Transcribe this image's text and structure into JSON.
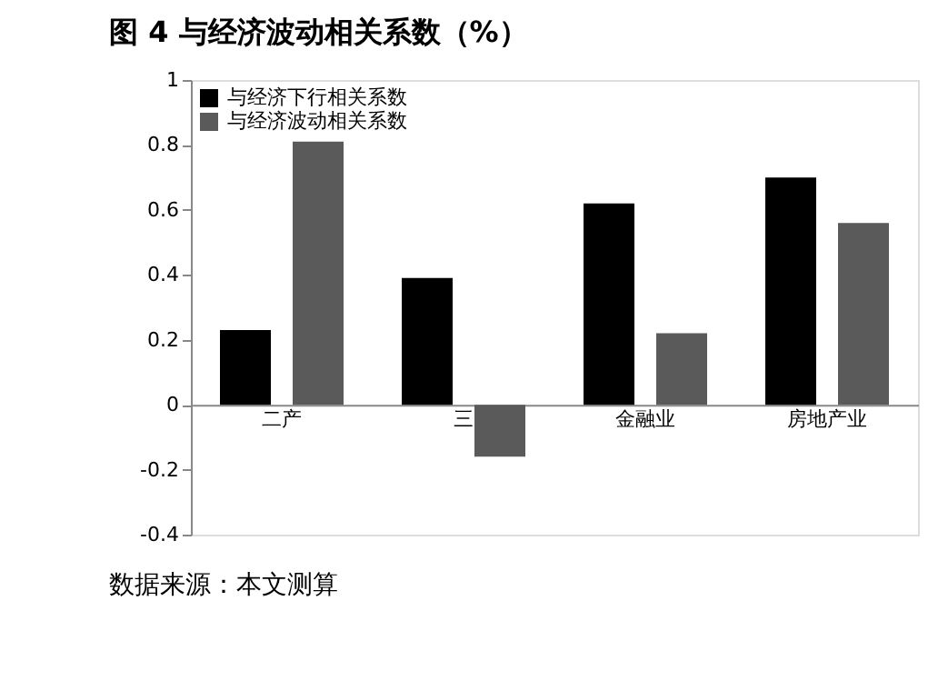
{
  "chart_data": {
    "type": "bar",
    "title": "图 4 与经济波动相关系数（%）",
    "categories": [
      "二产",
      "三",
      "金融业",
      "房地产业"
    ],
    "series": [
      {
        "name": "与经济下行相关系数",
        "color": "#000000",
        "values": [
          0.23,
          0.39,
          0.62,
          0.7
        ]
      },
      {
        "name": "与经济波动相关系数",
        "color": "#5a5a5a",
        "values": [
          0.81,
          -0.16,
          0.22,
          0.56
        ]
      }
    ],
    "ylim": [
      -0.4,
      1
    ],
    "yticks": [
      -0.4,
      -0.2,
      0,
      0.2,
      0.4,
      0.6,
      0.8,
      1
    ],
    "grid": false,
    "legend": "top left",
    "annotations": [
      "数据来源：本文测算"
    ]
  }
}
